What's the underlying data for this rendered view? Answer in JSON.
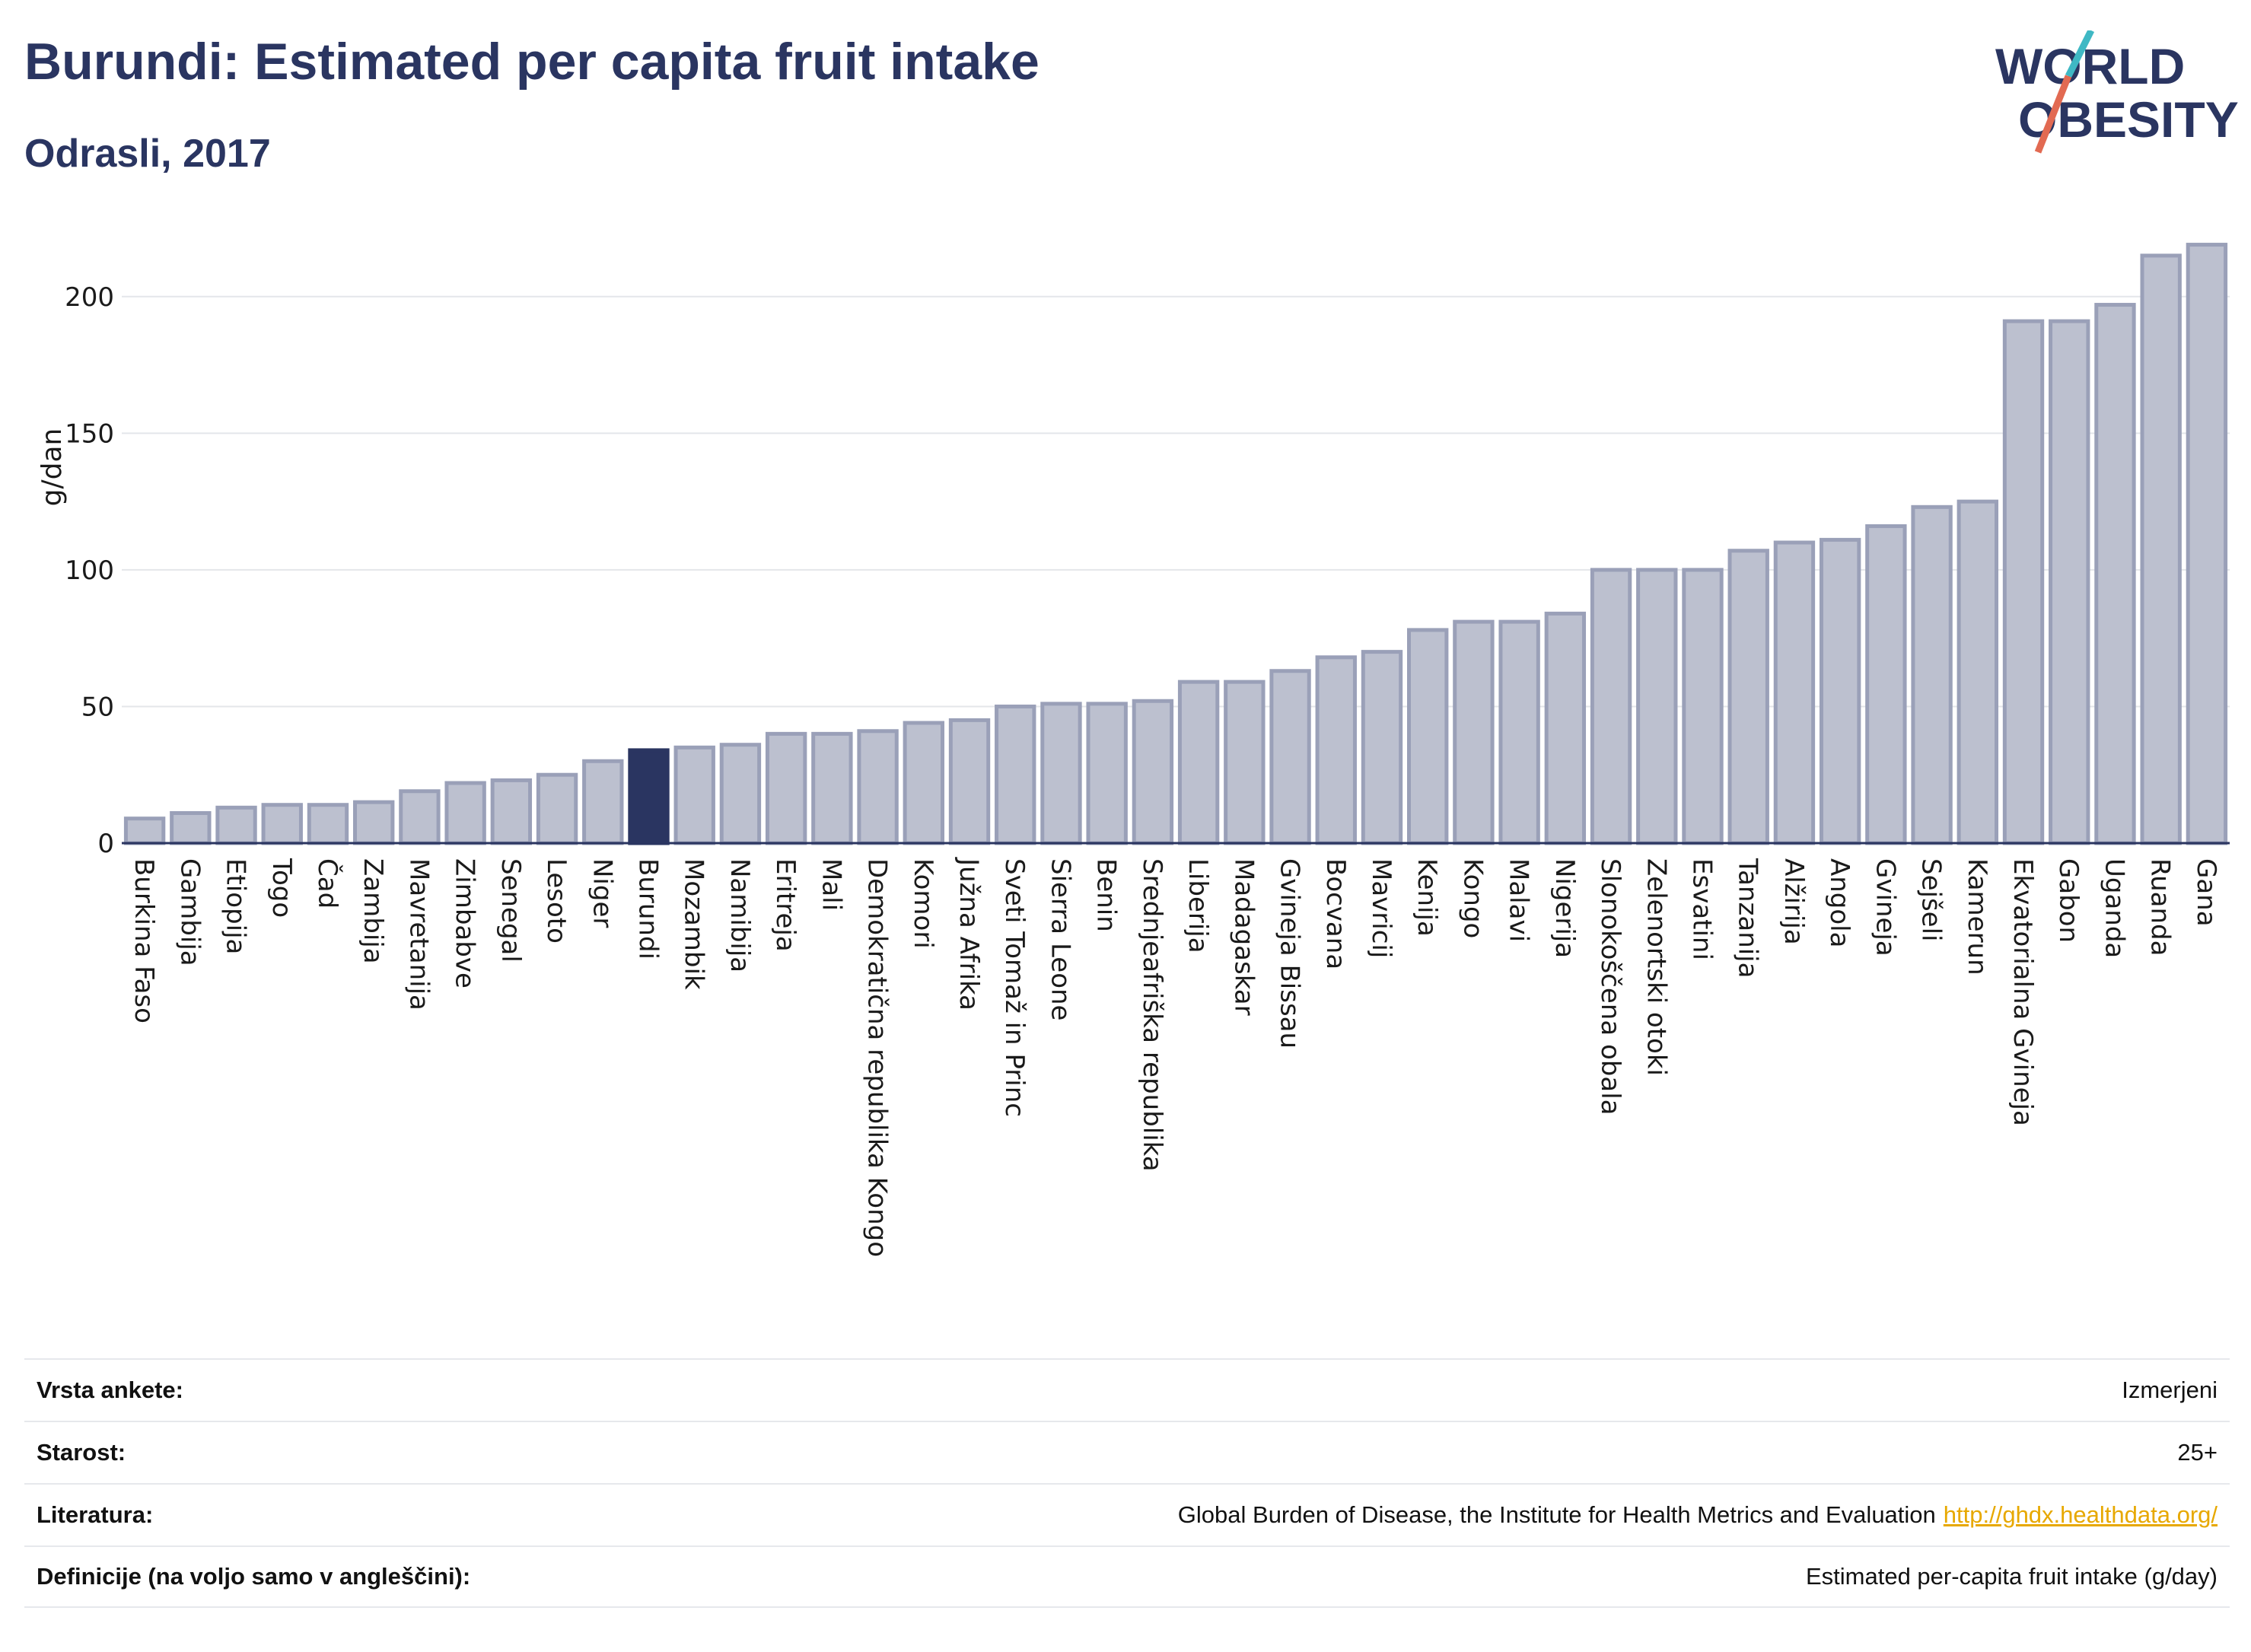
{
  "header": {
    "title": "Burundi: Estimated per capita fruit intake",
    "subtitle": "Odrasli, 2017"
  },
  "logo": {
    "line1": "WORLD",
    "line2": "OBESITY"
  },
  "colors": {
    "highlight": "#2a3561",
    "bar": "#bcc0cf",
    "bar_stroke": "#9aa0b8",
    "title": "#2a3561"
  },
  "chart_data": {
    "type": "bar",
    "ylabel": "g/dan",
    "ylim": [
      0,
      225
    ],
    "yticks": [
      0,
      50,
      100,
      150,
      200
    ],
    "grid": true,
    "highlight": "Burundi",
    "categories": [
      "Burkina Faso",
      "Gambija",
      "Etiopija",
      "Togo",
      "Čad",
      "Zambija",
      "Mavretanija",
      "Zimbabve",
      "Senegal",
      "Lesoto",
      "Niger",
      "Burundi",
      "Mozambik",
      "Namibija",
      "Eritreja",
      "Mali",
      "Demokratična republika Kongo",
      "Komori",
      "Južna Afrika",
      "Sveti Tomaž in Princ",
      "Sierra Leone",
      "Benin",
      "Srednjeafriška republika",
      "Liberija",
      "Madagaskar",
      "Gvineja Bissau",
      "Bocvana",
      "Mavricij",
      "Kenija",
      "Kongo",
      "Malavi",
      "Nigerija",
      "Slonokoščena obala",
      "Zelenortski otoki",
      "Esvatini",
      "Tanzanija",
      "Alžirija",
      "Angola",
      "Gvineja",
      "Sejšeli",
      "Kamerun",
      "Ekvatorialna Gvineja",
      "Gabon",
      "Uganda",
      "Ruanda",
      "Gana"
    ],
    "values": [
      9,
      11,
      13,
      14,
      14,
      15,
      19,
      22,
      23,
      25,
      30,
      34,
      35,
      36,
      40,
      40,
      41,
      44,
      45,
      50,
      51,
      51,
      52,
      59,
      59,
      63,
      68,
      70,
      78,
      81,
      81,
      84,
      100,
      100,
      100,
      107,
      110,
      111,
      116,
      123,
      125,
      191,
      191,
      197,
      215,
      219
    ]
  },
  "info": [
    {
      "key": "Vrsta ankete:",
      "value": "Izmerjeni",
      "link": ""
    },
    {
      "key": "Starost:",
      "value": "25+",
      "link": ""
    },
    {
      "key": "Literatura:",
      "value": "Global Burden of Disease, the Institute for Health Metrics and Evaluation",
      "link": "http://ghdx.healthdata.org/"
    },
    {
      "key": "Definicije (na voljo samo v angleščini):",
      "value": "Estimated per-capita fruit intake (g/day)",
      "link": ""
    }
  ]
}
